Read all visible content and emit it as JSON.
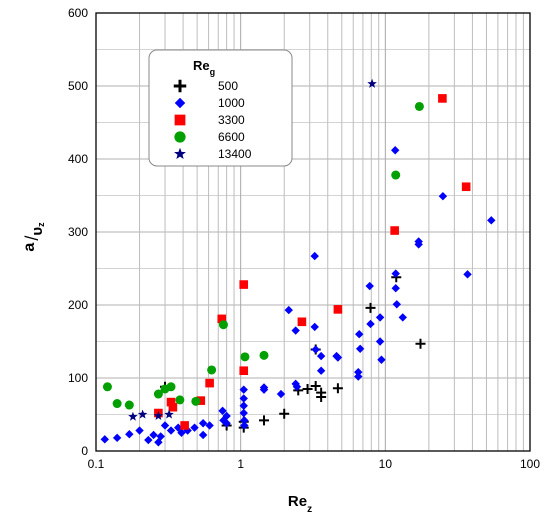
{
  "chart_data": {
    "type": "scatter",
    "xscale": "log",
    "xlim": [
      0.1,
      100
    ],
    "ylim": [
      0,
      600
    ],
    "xticks": [
      "0.1",
      "1",
      "10",
      "100"
    ],
    "yticks": [
      "0",
      "100",
      "200",
      "300",
      "400",
      "500",
      "600"
    ],
    "xlabel": {
      "main": "Re",
      "sub": "z"
    },
    "ylabel": {
      "num": "a",
      "den": "υ",
      "sub": "z"
    },
    "grid": true,
    "legend": {
      "position": "upper-left",
      "title": {
        "main": "Re",
        "sub": "g"
      }
    },
    "series": [
      {
        "name": "500",
        "marker": "plus",
        "color": "#000000",
        "points": [
          [
            0.3,
            88
          ],
          [
            0.8,
            35
          ],
          [
            1.05,
            40
          ],
          [
            1.05,
            32
          ],
          [
            1.45,
            42
          ],
          [
            2.0,
            51
          ],
          [
            2.5,
            83
          ],
          [
            2.9,
            85
          ],
          [
            3.3,
            139
          ],
          [
            3.3,
            89
          ],
          [
            3.6,
            80
          ],
          [
            3.6,
            74
          ],
          [
            4.7,
            86
          ],
          [
            7.9,
            196
          ],
          [
            11.9,
            238
          ],
          [
            17.5,
            147
          ]
        ]
      },
      {
        "name": "1000",
        "marker": "diamond",
        "color": "#0000ff",
        "points": [
          [
            0.115,
            16
          ],
          [
            0.14,
            18
          ],
          [
            0.17,
            23
          ],
          [
            0.2,
            28
          ],
          [
            0.23,
            15
          ],
          [
            0.25,
            22
          ],
          [
            0.27,
            12
          ],
          [
            0.28,
            20
          ],
          [
            0.3,
            35
          ],
          [
            0.33,
            28
          ],
          [
            0.37,
            32
          ],
          [
            0.39,
            25
          ],
          [
            0.43,
            28
          ],
          [
            0.48,
            32
          ],
          [
            0.55,
            22
          ],
          [
            0.55,
            38
          ],
          [
            0.61,
            35
          ],
          [
            0.75,
            55
          ],
          [
            0.76,
            42
          ],
          [
            0.8,
            48
          ],
          [
            0.8,
            38
          ],
          [
            1.05,
            84
          ],
          [
            1.05,
            72
          ],
          [
            1.05,
            62
          ],
          [
            1.05,
            52
          ],
          [
            1.06,
            42
          ],
          [
            1.06,
            35
          ],
          [
            1.45,
            87
          ],
          [
            1.45,
            84
          ],
          [
            1.9,
            78
          ],
          [
            2.15,
            193
          ],
          [
            2.4,
            165
          ],
          [
            2.4,
            92
          ],
          [
            2.45,
            88
          ],
          [
            3.25,
            267
          ],
          [
            3.25,
            170
          ],
          [
            3.3,
            139
          ],
          [
            3.6,
            130
          ],
          [
            3.6,
            110
          ],
          [
            4.6,
            130
          ],
          [
            4.7,
            128
          ],
          [
            6.5,
            102
          ],
          [
            6.5,
            108
          ],
          [
            6.7,
            140
          ],
          [
            6.6,
            160
          ],
          [
            7.8,
            226
          ],
          [
            7.9,
            174
          ],
          [
            9.2,
            183
          ],
          [
            9.2,
            150
          ],
          [
            9.4,
            125
          ],
          [
            11.7,
            412
          ],
          [
            11.8,
            243
          ],
          [
            11.8,
            223
          ],
          [
            12.0,
            201
          ],
          [
            13.2,
            183
          ],
          [
            17.0,
            287
          ],
          [
            17.0,
            283
          ],
          [
            25.0,
            349
          ],
          [
            37.0,
            242
          ],
          [
            54.0,
            316
          ]
        ]
      },
      {
        "name": "3300",
        "marker": "square",
        "color": "#ff0000",
        "points": [
          [
            0.27,
            52
          ],
          [
            0.33,
            67
          ],
          [
            0.34,
            60
          ],
          [
            0.41,
            35
          ],
          [
            0.53,
            69
          ],
          [
            0.61,
            93
          ],
          [
            0.74,
            181
          ],
          [
            1.05,
            228
          ],
          [
            1.05,
            110
          ],
          [
            2.65,
            177
          ],
          [
            4.7,
            194
          ],
          [
            11.6,
            302
          ],
          [
            24.8,
            483
          ],
          [
            36.2,
            362
          ]
        ]
      },
      {
        "name": "6600",
        "marker": "circle",
        "color": "#00a000",
        "points": [
          [
            0.12,
            88
          ],
          [
            0.14,
            65
          ],
          [
            0.17,
            63
          ],
          [
            0.27,
            78
          ],
          [
            0.3,
            85
          ],
          [
            0.33,
            88
          ],
          [
            0.38,
            70
          ],
          [
            0.49,
            68
          ],
          [
            0.63,
            111
          ],
          [
            0.76,
            173
          ],
          [
            1.07,
            129
          ],
          [
            1.45,
            131
          ],
          [
            11.8,
            378
          ],
          [
            17.2,
            472
          ]
        ]
      },
      {
        "name": "13400",
        "marker": "star",
        "color": "#000080",
        "points": [
          [
            0.18,
            47
          ],
          [
            0.21,
            50
          ],
          [
            0.27,
            48
          ],
          [
            0.32,
            50
          ],
          [
            8.1,
            503
          ]
        ]
      }
    ]
  }
}
